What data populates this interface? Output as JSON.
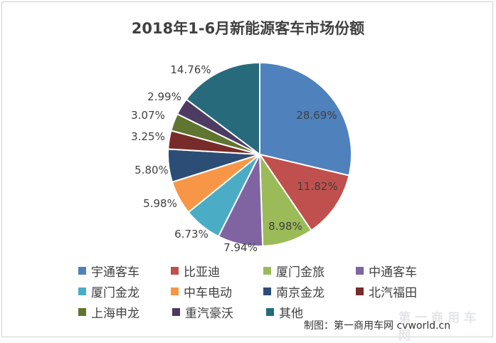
{
  "chart_data": {
    "type": "pie",
    "title": "2018年1-6月新能源客车市场份额",
    "categories": [
      "宇通客车",
      "比亚迪",
      "厦门金旅",
      "中通客车",
      "厦门金龙",
      "中车电动",
      "南京金龙",
      "北汽福田",
      "上海申龙",
      "重汽豪沃",
      "其他"
    ],
    "values": [
      28.69,
      11.82,
      8.98,
      7.94,
      6.73,
      5.98,
      5.8,
      3.25,
      3.07,
      2.99,
      14.76
    ],
    "labels": [
      "28.69%",
      "11.82%",
      "8.98%",
      "7.94%",
      "6.73%",
      "5.98%",
      "5.80%",
      "3.25%",
      "3.07%",
      "2.99%",
      "14.76%"
    ],
    "colors": [
      "#4f81bd",
      "#c0504d",
      "#9bbb59",
      "#8064a2",
      "#4bacc6",
      "#f79646",
      "#2c4d75",
      "#772c2a",
      "#5f7530",
      "#4d3b62",
      "#276a7c"
    ],
    "legend_position": "bottom"
  },
  "credit": "制图：第一商用车网 cvworld.cn",
  "watermark": "第一商用车网"
}
